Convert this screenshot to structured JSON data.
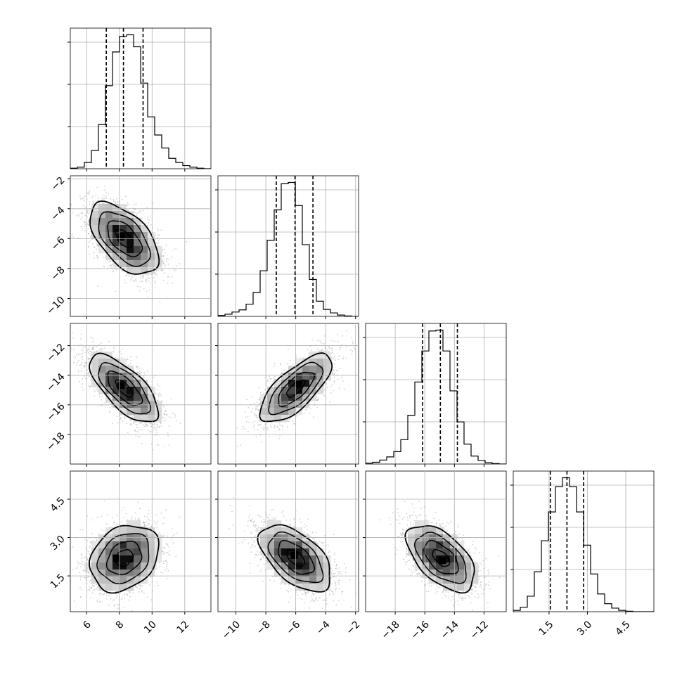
{
  "chart_data": {
    "type": "corner",
    "parameters": [
      {
        "range": [
          5,
          13.6
        ],
        "ticks": [
          6,
          8,
          10,
          12
        ],
        "tick_labels": [
          "6",
          "8",
          "10",
          "12"
        ],
        "quantiles": [
          7.2,
          8.25,
          9.45
        ],
        "hist": {
          "edges_start": 5,
          "bin_width": 0.43,
          "counts": [
            1,
            3,
            12,
            35,
            85,
            160,
            225,
            255,
            258,
            235,
            165,
            100,
            65,
            40,
            20,
            12,
            6,
            3,
            1,
            0
          ]
        }
      },
      {
        "range": [
          -11.2,
          -1.8
        ],
        "ticks": [
          -10,
          -8,
          -6,
          -4,
          -2
        ],
        "tick_labels": [
          "−10",
          "−8",
          "−6",
          "−4",
          "−2"
        ],
        "quantiles": [
          -7.3,
          -6.05,
          -4.85
        ],
        "hist": {
          "edges_start": -11.2,
          "bin_width": 0.47,
          "counts": [
            2,
            5,
            10,
            15,
            28,
            55,
            105,
            175,
            245,
            305,
            308,
            255,
            165,
            85,
            35,
            16,
            8,
            3,
            1,
            0
          ]
        }
      },
      {
        "range": [
          -20,
          -10.5
        ],
        "ticks": [
          -18,
          -16,
          -14,
          -12
        ],
        "tick_labels": [
          "−18",
          "−16",
          "−14",
          "−12"
        ],
        "quantiles": [
          -16.15,
          -14.95,
          -13.8
        ],
        "hist": {
          "edges_start": -20,
          "bin_width": 0.475,
          "counts": [
            2,
            4,
            9,
            16,
            28,
            55,
            110,
            185,
            255,
            300,
            302,
            255,
            165,
            95,
            45,
            18,
            8,
            3,
            1,
            0
          ]
        }
      },
      {
        "range": [
          0.1,
          5.6
        ],
        "ticks": [
          1.5,
          3.0,
          4.5
        ],
        "tick_labels": [
          "1.5",
          "3.0",
          "4.5"
        ],
        "quantiles": [
          1.55,
          2.2,
          2.85
        ],
        "hist": {
          "edges_start": 0.1,
          "bin_width": 0.275,
          "counts": [
            3,
            10,
            35,
            90,
            160,
            225,
            282,
            302,
            282,
            225,
            150,
            85,
            40,
            18,
            8,
            3,
            1,
            0,
            0,
            0
          ]
        }
      }
    ],
    "pairs": [
      {
        "row": 1,
        "col": 0,
        "mean": [
          8.3,
          -6.0
        ],
        "sd": [
          1.05,
          1.2
        ],
        "rho": -0.55,
        "peak": [
          8.1,
          -5.9
        ]
      },
      {
        "row": 2,
        "col": 0,
        "mean": [
          8.3,
          -14.9
        ],
        "sd": [
          1.05,
          1.15
        ],
        "rho": -0.7,
        "peak": [
          8.1,
          -14.7
        ]
      },
      {
        "row": 2,
        "col": 1,
        "mean": [
          -6.0,
          -14.9
        ],
        "sd": [
          1.2,
          1.15
        ],
        "rho": 0.72,
        "peak": [
          -5.8,
          -14.6
        ]
      },
      {
        "row": 3,
        "col": 0,
        "mean": [
          8.3,
          2.2
        ],
        "sd": [
          1.05,
          0.65
        ],
        "rho": 0.25,
        "peak": [
          7.8,
          2.2
        ]
      },
      {
        "row": 3,
        "col": 1,
        "mean": [
          -6.0,
          2.2
        ],
        "sd": [
          1.2,
          0.65
        ],
        "rho": -0.55,
        "peak": [
          -6.1,
          2.3
        ]
      },
      {
        "row": 3,
        "col": 2,
        "mean": [
          -14.9,
          2.2
        ],
        "sd": [
          1.15,
          0.65
        ],
        "rho": -0.55,
        "peak": [
          -14.8,
          2.1
        ]
      }
    ],
    "contour_levels_sigma": [
      0.5,
      1.0,
      1.5,
      2.0
    ],
    "quantile_line_style": "dashed",
    "grid": true,
    "colors": {
      "line": "#000000",
      "grid": "#b0b0b0",
      "points": "#9a9a9a",
      "cell_dark": "#000000",
      "cell_light": "#ffffff"
    }
  }
}
